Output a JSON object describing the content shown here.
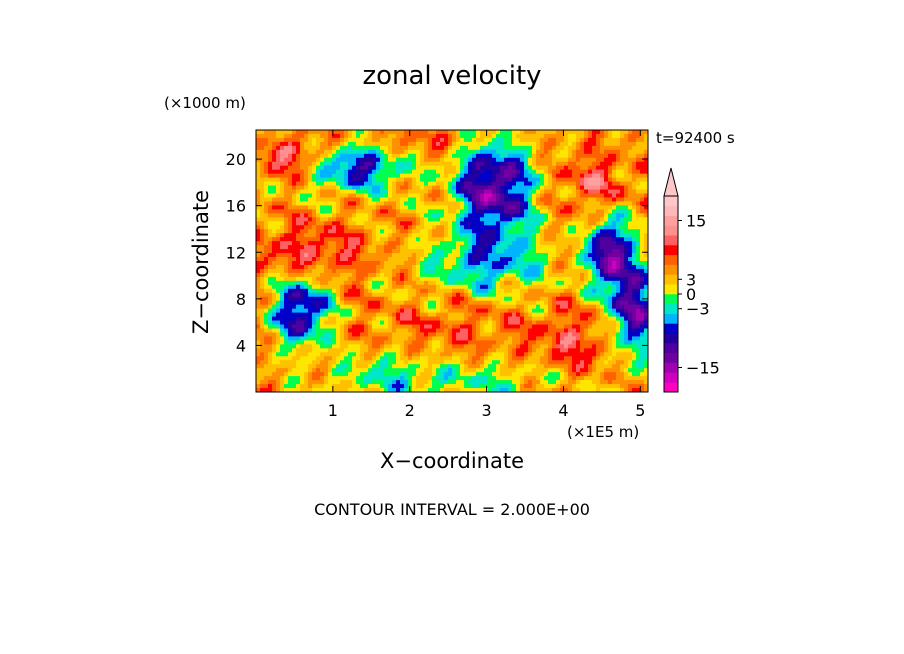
{
  "chart_data": {
    "type": "heatmap",
    "title": "zonal velocity",
    "time_label": "t=92400 s",
    "x_axis": {
      "label": "X−coordinate",
      "unit_label": "(×1E5 m)",
      "range": [
        0,
        5.1
      ],
      "ticks": [
        1,
        2,
        3,
        4,
        5
      ],
      "tick_labels": [
        "1",
        "2",
        "3",
        "4",
        "5"
      ]
    },
    "y_axis": {
      "label": "Z−coordinate",
      "unit_label": "(×1000 m)",
      "range": [
        0,
        22.5
      ],
      "ticks": [
        4,
        8,
        12,
        16,
        20
      ],
      "tick_labels": [
        "4",
        "8",
        "12",
        "16",
        "20"
      ]
    },
    "footer": "CONTOUR INTERVAL = 2.000E+00",
    "colorbar": {
      "levels": [
        -19,
        -17,
        -15,
        -13,
        -11,
        -9,
        -7,
        -5,
        -3,
        -1,
        1,
        3,
        5,
        7,
        9,
        11,
        13,
        15,
        17,
        19
      ],
      "colors": [
        "#ff00c0",
        "#d000c0",
        "#a000b0",
        "#7000a0",
        "#5000a0",
        "#2000a0",
        "#0000c8",
        "#00b4ff",
        "#00e6c8",
        "#00ff50",
        "#ffe600",
        "#ffc000",
        "#ff9000",
        "#ff6000",
        "#ff0000",
        "#ff6060",
        "#ff9090",
        "#ffa0a0",
        "#ffb8b8",
        "#ffc8c8"
      ],
      "label_values": [
        15,
        3,
        0,
        -3,
        -15
      ],
      "labels": [
        "15",
        "3",
        "0",
        "−3",
        "−15"
      ]
    },
    "grid": false,
    "legend_position": "right"
  }
}
